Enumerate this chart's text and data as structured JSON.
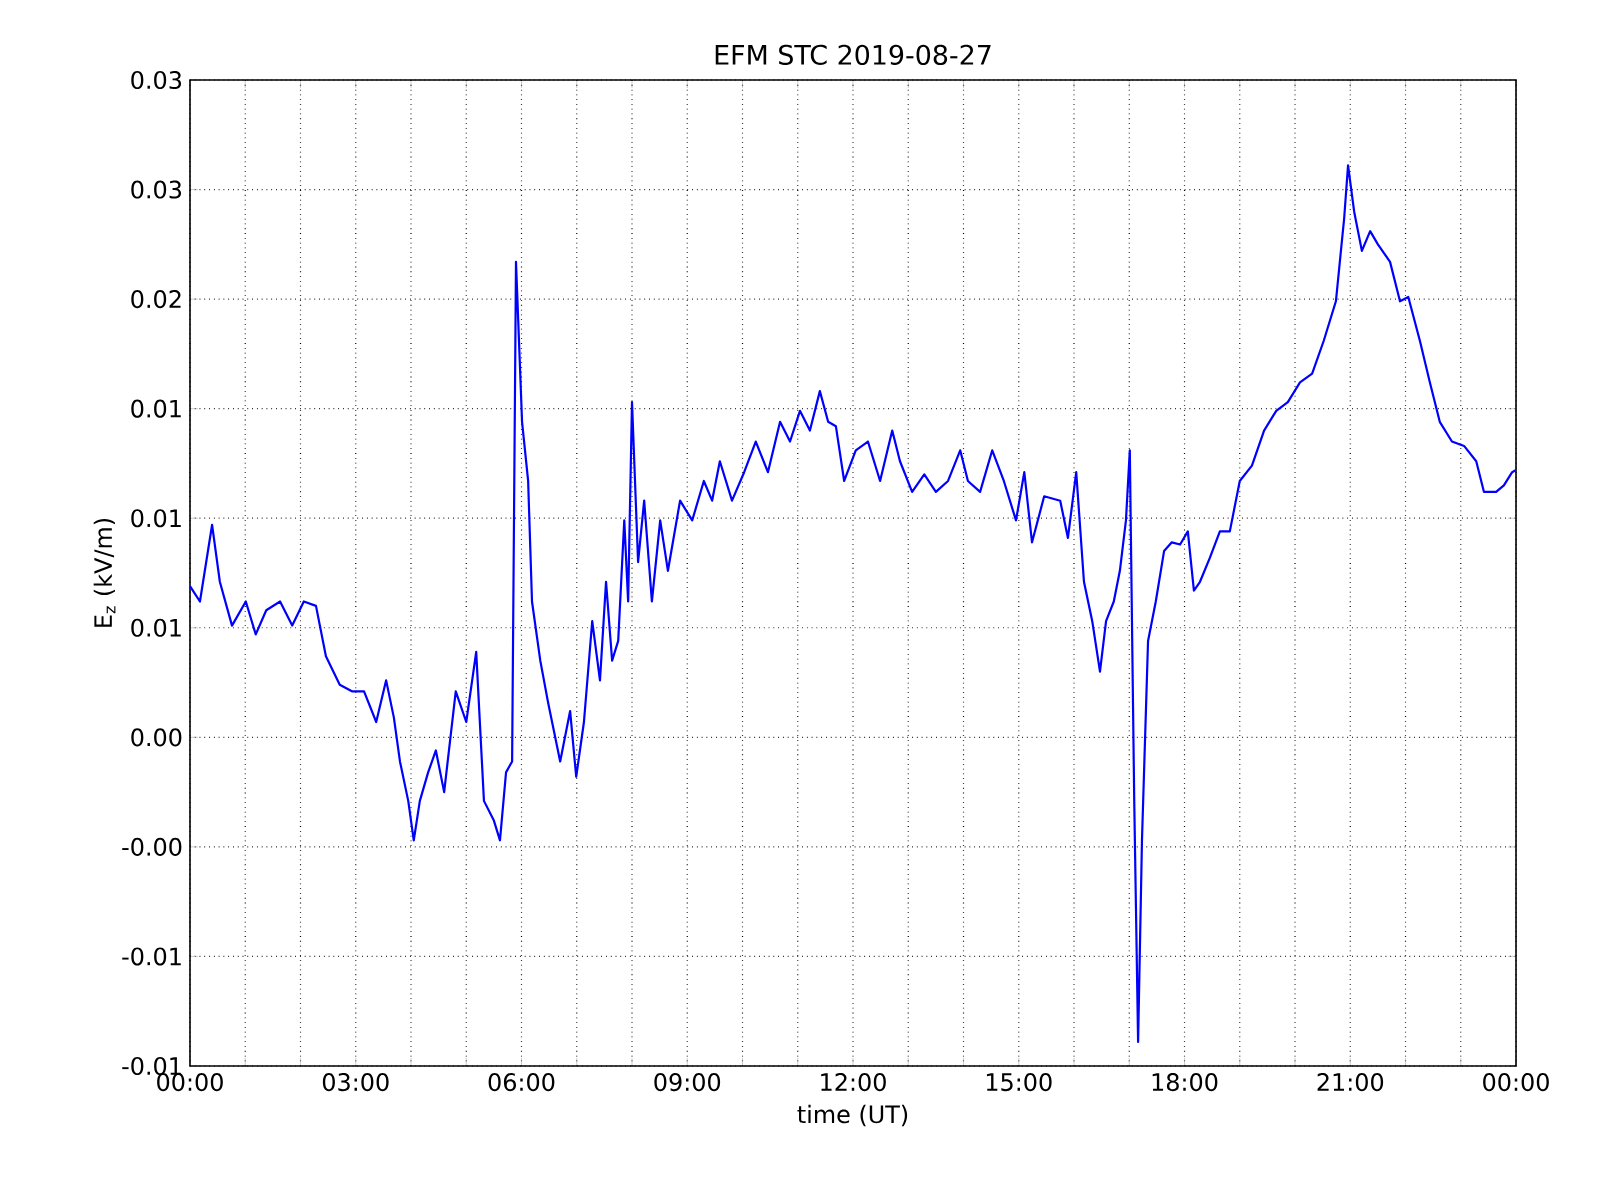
{
  "chart_data": {
    "type": "line",
    "title": "EFM STC    2019-08-27",
    "xlabel": "time (UT)",
    "ylabel": "E$_{z}$ (kV/m)",
    "color": "#0000ff",
    "grid": true,
    "xlim": [
      0,
      24
    ],
    "ylim": [
      -0.015,
      0.03
    ],
    "xticks": [
      {
        "value": 0,
        "label": "00:00"
      },
      {
        "value": 1,
        "label": null
      },
      {
        "value": 2,
        "label": null
      },
      {
        "value": 3,
        "label": "03:00"
      },
      {
        "value": 4,
        "label": null
      },
      {
        "value": 5,
        "label": null
      },
      {
        "value": 6,
        "label": "06:00"
      },
      {
        "value": 7,
        "label": null
      },
      {
        "value": 8,
        "label": null
      },
      {
        "value": 9,
        "label": "09:00"
      },
      {
        "value": 10,
        "label": null
      },
      {
        "value": 11,
        "label": null
      },
      {
        "value": 12,
        "label": "12:00"
      },
      {
        "value": 13,
        "label": null
      },
      {
        "value": 14,
        "label": null
      },
      {
        "value": 15,
        "label": "15:00"
      },
      {
        "value": 16,
        "label": null
      },
      {
        "value": 17,
        "label": null
      },
      {
        "value": 18,
        "label": "18:00"
      },
      {
        "value": 19,
        "label": null
      },
      {
        "value": 20,
        "label": null
      },
      {
        "value": 21,
        "label": "21:00"
      },
      {
        "value": 22,
        "label": null
      },
      {
        "value": 23,
        "label": null
      },
      {
        "value": 24,
        "label": "00:00"
      }
    ],
    "yticks": [
      {
        "value": -0.015,
        "label": "-0.01"
      },
      {
        "value": -0.01,
        "label": "-0.01"
      },
      {
        "value": -0.005,
        "label": "-0.00"
      },
      {
        "value": 0,
        "label": "0.00"
      },
      {
        "value": 0.005,
        "label": "0.01"
      },
      {
        "value": 0.01,
        "label": "0.01"
      },
      {
        "value": 0.015,
        "label": "0.01"
      },
      {
        "value": 0.02,
        "label": "0.02"
      },
      {
        "value": 0.025,
        "label": "0.03"
      },
      {
        "value": 0.03,
        "label": "0.03"
      }
    ],
    "x": [
      0,
      0.18,
      0.4,
      0.54,
      0.76,
      1.01,
      1.19,
      1.38,
      1.63,
      1.85,
      2.06,
      2.28,
      2.46,
      2.71,
      2.93,
      3.15,
      3.37,
      3.55,
      3.69,
      3.8,
      3.95,
      4.05,
      4.16,
      4.31,
      4.45,
      4.6,
      4.81,
      5.0,
      5.18,
      5.32,
      5.5,
      5.61,
      5.72,
      5.83,
      5.9,
      6.01,
      6.12,
      6.19,
      6.34,
      6.48,
      6.7,
      6.88,
      6.99,
      7.13,
      7.28,
      7.42,
      7.53,
      7.64,
      7.75,
      7.86,
      7.93,
      8.0,
      8.11,
      8.22,
      8.36,
      8.51,
      8.65,
      8.87,
      9.09,
      9.3,
      9.45,
      9.59,
      9.81,
      10.03,
      10.24,
      10.46,
      10.68,
      10.86,
      11.04,
      11.22,
      11.4,
      11.55,
      11.69,
      11.84,
      12.05,
      12.27,
      12.49,
      12.71,
      12.85,
      13.07,
      13.29,
      13.5,
      13.72,
      13.94,
      14.08,
      14.3,
      14.52,
      14.73,
      14.95,
      15.1,
      15.24,
      15.46,
      15.75,
      15.89,
      16.04,
      16.18,
      16.33,
      16.47,
      16.58,
      16.72,
      16.83,
      16.94,
      17.01,
      17.09,
      17.16,
      17.23,
      17.34,
      17.48,
      17.63,
      17.77,
      17.92,
      18.06,
      18.17,
      18.28,
      18.46,
      18.64,
      18.82,
      19.0,
      19.22,
      19.44,
      19.66,
      19.87,
      20.09,
      20.31,
      20.52,
      20.74,
      20.89,
      20.96,
      21.07,
      21.21,
      21.36,
      21.5,
      21.72,
      21.9,
      22.05,
      22.26,
      22.44,
      22.62,
      22.84,
      23.06,
      23.28,
      23.42,
      23.64,
      23.78,
      23.93,
      24.0
    ],
    "values": [
      0.0069,
      0.0062,
      0.0097,
      0.0071,
      0.0051,
      0.0062,
      0.0047,
      0.0058,
      0.0062,
      0.0051,
      0.0062,
      0.006,
      0.0037,
      0.0024,
      0.0021,
      0.0021,
      0.0007,
      0.0026,
      0.0009,
      -0.0011,
      -0.0029,
      -0.0047,
      -0.0029,
      -0.0016,
      -0.0006,
      -0.0025,
      0.0021,
      0.0007,
      0.0039,
      -0.0029,
      -0.0038,
      -0.0047,
      -0.0016,
      -0.0011,
      0.0217,
      0.0144,
      0.0117,
      0.0062,
      0.0035,
      0.0016,
      -0.0011,
      0.0012,
      -0.0018,
      0.0007,
      0.0053,
      0.0026,
      0.0071,
      0.0035,
      0.0044,
      0.0099,
      0.0062,
      0.0153,
      0.008,
      0.0108,
      0.0062,
      0.0099,
      0.0076,
      0.0108,
      0.0099,
      0.0117,
      0.0108,
      0.0126,
      0.0108,
      0.0121,
      0.0135,
      0.0121,
      0.0144,
      0.0135,
      0.0149,
      0.014,
      0.0158,
      0.0144,
      0.0142,
      0.0117,
      0.0131,
      0.0135,
      0.0117,
      0.014,
      0.0126,
      0.0112,
      0.012,
      0.0112,
      0.0117,
      0.0131,
      0.0117,
      0.0112,
      0.0131,
      0.0117,
      0.0099,
      0.0121,
      0.0089,
      0.011,
      0.0108,
      0.0091,
      0.0121,
      0.0071,
      0.0053,
      0.003,
      0.0053,
      0.0062,
      0.0076,
      0.0099,
      0.0131,
      -0.0029,
      -0.0139,
      -0.0047,
      0.0044,
      0.0062,
      0.0085,
      0.0089,
      0.0088,
      0.0094,
      0.0067,
      0.0071,
      0.0082,
      0.0094,
      0.0094,
      0.0117,
      0.0124,
      0.014,
      0.0149,
      0.0153,
      0.0162,
      0.0166,
      0.0181,
      0.0199,
      0.0237,
      0.0261,
      0.024,
      0.0222,
      0.0231,
      0.0225,
      0.0217,
      0.0199,
      0.0201,
      0.0181,
      0.0162,
      0.0144,
      0.0135,
      0.0133,
      0.0126,
      0.0112,
      0.0112,
      0.0115,
      0.0121,
      0.0122
    ]
  }
}
